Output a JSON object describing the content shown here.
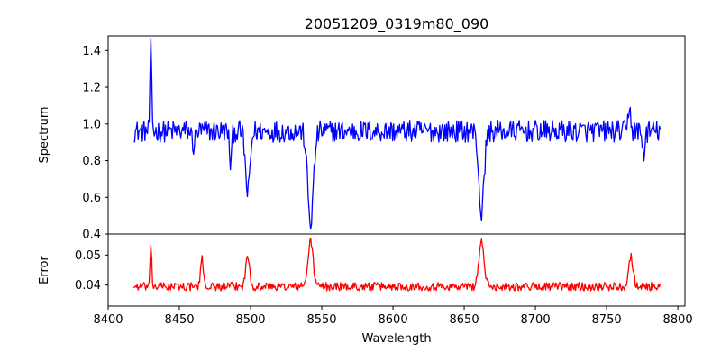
{
  "title": "20051209_0319m80_090",
  "chart_data": [
    {
      "type": "line",
      "panel": "top",
      "ylabel": "Spectrum",
      "xlim": [
        8400,
        8805
      ],
      "ylim": [
        0.4,
        1.48
      ],
      "yticks": [
        "0.4",
        "0.6",
        "0.8",
        "1.0",
        "1.2",
        "1.4"
      ],
      "color": "#0000ff",
      "noise_amplitude": 0.06,
      "continuum": 0.96,
      "series": [
        {
          "x_range": [
            8418,
            8788
          ],
          "features": [
            {
              "x": 8430,
              "depth": -0.45,
              "width": 0.6
            },
            {
              "x": 8460,
              "depth": 0.08,
              "width": 1.0
            },
            {
              "x": 8486,
              "depth": 0.18,
              "width": 0.8
            },
            {
              "x": 8498.0,
              "depth": 0.34,
              "width": 1.6
            },
            {
              "x": 8542.1,
              "depth": 0.5,
              "width": 2.0
            },
            {
              "x": 8662.1,
              "depth": 0.45,
              "width": 1.8
            },
            {
              "x": 8766,
              "depth": -0.15,
              "width": 0.8
            },
            {
              "x": 8776,
              "depth": 0.12,
              "width": 1.0
            }
          ]
        }
      ]
    },
    {
      "type": "line",
      "panel": "bottom",
      "xlabel": "Wavelength",
      "ylabel": "Error",
      "xlim": [
        8400,
        8805
      ],
      "ylim": [
        0.033,
        0.057
      ],
      "xticks": [
        "8400",
        "8450",
        "8500",
        "8550",
        "8600",
        "8650",
        "8700",
        "8750",
        "8800"
      ],
      "yticks": [
        "0.04",
        "0.05"
      ],
      "color": "#ff0000",
      "noise_amplitude": 0.0014,
      "continuum": 0.0395,
      "series": [
        {
          "x_range": [
            8418,
            8788
          ],
          "features": [
            {
              "x": 8430,
              "depth": -0.0125,
              "width": 0.6
            },
            {
              "x": 8466,
              "depth": -0.009,
              "width": 1.0
            },
            {
              "x": 8498.0,
              "depth": -0.01,
              "width": 1.4
            },
            {
              "x": 8542.1,
              "depth": -0.015,
              "width": 1.8
            },
            {
              "x": 8662.1,
              "depth": -0.015,
              "width": 1.8
            },
            {
              "x": 8767,
              "depth": -0.01,
              "width": 1.6
            }
          ]
        }
      ]
    }
  ]
}
